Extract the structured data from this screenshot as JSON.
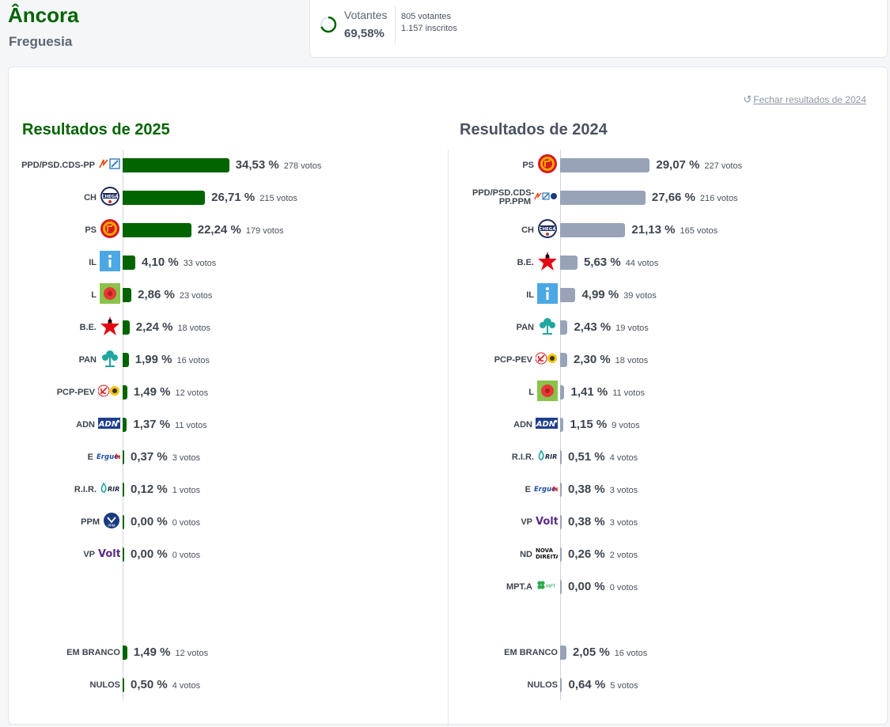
{
  "header": {
    "title": "Âncora",
    "subtitle": "Freguesia"
  },
  "voters": {
    "label": "Votantes",
    "percent": "69,58%",
    "percent_value": 0.6958,
    "count": "805 votantes",
    "registered": "1.157 inscritos"
  },
  "close_link": "Fechar resultados de 2024",
  "results_2025": {
    "title": "Resultados de 2025",
    "color": "#006400",
    "parties": [
      {
        "name": "PPD/PSD.CDS-PP",
        "pct_text": "34,53 %",
        "value": 34.53,
        "votes": "278 votos",
        "logo": "psd-cds-logo"
      },
      {
        "name": "CH",
        "pct_text": "26,71 %",
        "value": 26.71,
        "votes": "215 votos",
        "logo": "chega-logo"
      },
      {
        "name": "PS",
        "pct_text": "22,24 %",
        "value": 22.24,
        "votes": "179 votos",
        "logo": "ps-logo"
      },
      {
        "name": "IL",
        "pct_text": "4,10 %",
        "value": 4.1,
        "votes": "33 votos",
        "logo": "il-logo"
      },
      {
        "name": "L",
        "pct_text": "2,86 %",
        "value": 2.86,
        "votes": "23 votos",
        "logo": "livre-logo"
      },
      {
        "name": "B.E.",
        "pct_text": "2,24 %",
        "value": 2.24,
        "votes": "18 votos",
        "logo": "be-logo"
      },
      {
        "name": "PAN",
        "pct_text": "1,99 %",
        "value": 1.99,
        "votes": "16 votos",
        "logo": "pan-logo"
      },
      {
        "name": "PCP-PEV",
        "pct_text": "1,49 %",
        "value": 1.49,
        "votes": "12 votos",
        "logo": "pcp-pev-logo"
      },
      {
        "name": "ADN",
        "pct_text": "1,37 %",
        "value": 1.37,
        "votes": "11 votos",
        "logo": "adn-logo"
      },
      {
        "name": "E",
        "pct_text": "0,37 %",
        "value": 0.37,
        "votes": "3 votos",
        "logo": "ergue-te-logo"
      },
      {
        "name": "R.I.R.",
        "pct_text": "0,12 %",
        "value": 0.12,
        "votes": "1 votos",
        "logo": "rir-logo"
      },
      {
        "name": "PPM",
        "pct_text": "0,00 %",
        "value": 0.0,
        "votes": "0 votos",
        "logo": "ppm-logo"
      },
      {
        "name": "VP",
        "pct_text": "0,00 %",
        "value": 0.0,
        "votes": "0 votos",
        "logo": "volt-logo"
      }
    ],
    "extra": [
      {
        "name": "EM BRANCO",
        "pct_text": "1,49 %",
        "value": 1.49,
        "votes": "12 votos"
      },
      {
        "name": "NULOS",
        "pct_text": "0,50 %",
        "value": 0.5,
        "votes": "4 votos"
      }
    ]
  },
  "results_2024": {
    "title": "Resultados de 2024",
    "color": "#98a3b8",
    "parties": [
      {
        "name": "PS",
        "pct_text": "29,07 %",
        "value": 29.07,
        "votes": "227 votos",
        "logo": "ps-logo"
      },
      {
        "name": "PPD/PSD.CDS-PP.PPM",
        "pct_text": "27,66 %",
        "value": 27.66,
        "votes": "216 votos",
        "logo": "psd-cds-ppm-logo"
      },
      {
        "name": "CH",
        "pct_text": "21,13 %",
        "value": 21.13,
        "votes": "165 votos",
        "logo": "chega-logo"
      },
      {
        "name": "B.E.",
        "pct_text": "5,63 %",
        "value": 5.63,
        "votes": "44 votos",
        "logo": "be-logo"
      },
      {
        "name": "IL",
        "pct_text": "4,99 %",
        "value": 4.99,
        "votes": "39 votos",
        "logo": "il-logo"
      },
      {
        "name": "PAN",
        "pct_text": "2,43 %",
        "value": 2.43,
        "votes": "19 votos",
        "logo": "pan-logo"
      },
      {
        "name": "PCP-PEV",
        "pct_text": "2,30 %",
        "value": 2.3,
        "votes": "18 votos",
        "logo": "pcp-pev-logo"
      },
      {
        "name": "L",
        "pct_text": "1,41 %",
        "value": 1.41,
        "votes": "11 votos",
        "logo": "livre-logo"
      },
      {
        "name": "ADN",
        "pct_text": "1,15 %",
        "value": 1.15,
        "votes": "9 votos",
        "logo": "adn-logo"
      },
      {
        "name": "R.I.R.",
        "pct_text": "0,51 %",
        "value": 0.51,
        "votes": "4 votos",
        "logo": "rir-logo"
      },
      {
        "name": "E",
        "pct_text": "0,38 %",
        "value": 0.38,
        "votes": "3 votos",
        "logo": "ergue-te-logo"
      },
      {
        "name": "VP",
        "pct_text": "0,38 %",
        "value": 0.38,
        "votes": "3 votos",
        "logo": "volt-logo"
      },
      {
        "name": "ND",
        "pct_text": "0,26 %",
        "value": 0.26,
        "votes": "2 votos",
        "logo": "nova-direita-logo"
      },
      {
        "name": "MPT.A",
        "pct_text": "0,00 %",
        "value": 0.0,
        "votes": "0 votos",
        "logo": "mpt-logo"
      }
    ],
    "extra": [
      {
        "name": "EM BRANCO",
        "pct_text": "2,05 %",
        "value": 2.05,
        "votes": "16 votos"
      },
      {
        "name": "NULOS",
        "pct_text": "0,64 %",
        "value": 0.64,
        "votes": "5 votos"
      }
    ]
  }
}
